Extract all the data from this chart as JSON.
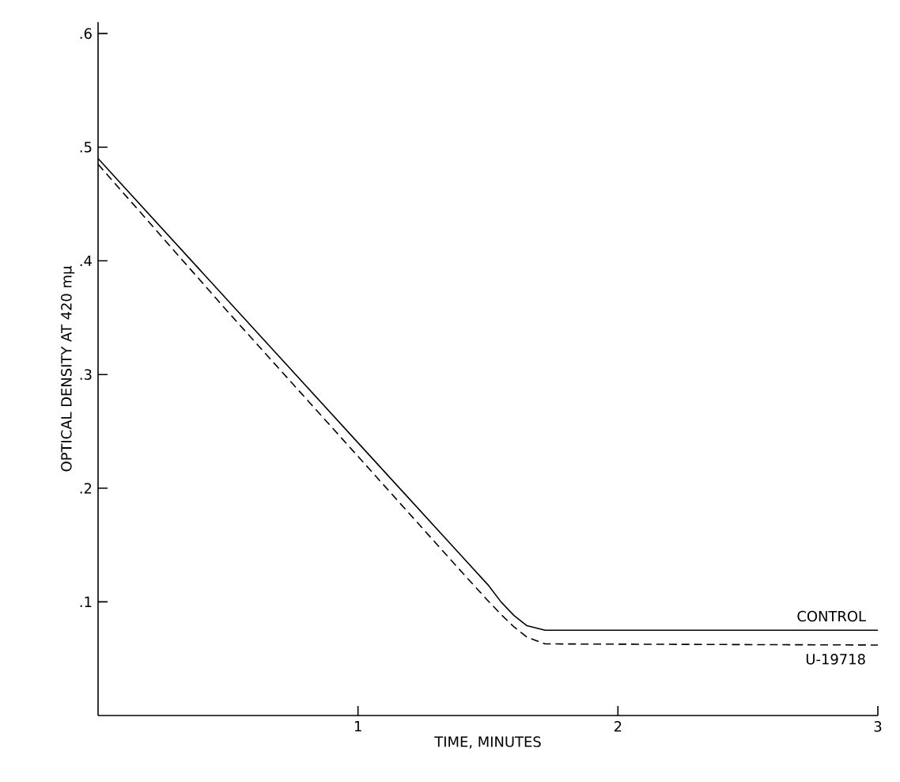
{
  "chart_data": {
    "type": "line",
    "xlabel": "TIME, MINUTES",
    "ylabel": "OPTICAL DENSITY AT 420 mμ",
    "xlim": [
      0,
      3
    ],
    "ylim": [
      0,
      0.61
    ],
    "xticks": [
      1,
      2,
      3
    ],
    "yticks": [
      {
        "value": 0.1,
        "label": ".1"
      },
      {
        "value": 0.2,
        "label": ".2"
      },
      {
        "value": 0.3,
        "label": ".3"
      },
      {
        "value": 0.4,
        "label": ".4"
      },
      {
        "value": 0.5,
        "label": ".5"
      },
      {
        "value": 0.6,
        "label": ".6"
      }
    ],
    "grid": false,
    "legend": false,
    "series": [
      {
        "name": "CONTROL",
        "color": "#000000",
        "line_style": "solid",
        "x": [
          0,
          0.5,
          1,
          1.4,
          1.5,
          1.55,
          1.6,
          1.65,
          1.72,
          3
        ],
        "values": [
          0.49,
          0.365,
          0.24,
          0.14,
          0.115,
          0.1,
          0.088,
          0.079,
          0.075,
          0.075
        ]
      },
      {
        "name": "U-19718",
        "color": "#000000",
        "line_style": "dashed",
        "x": [
          0,
          0.5,
          1,
          1.4,
          1.5,
          1.55,
          1.6,
          1.65,
          1.72,
          3
        ],
        "values": [
          0.485,
          0.355,
          0.228,
          0.126,
          0.101,
          0.089,
          0.078,
          0.069,
          0.063,
          0.062
        ]
      }
    ]
  }
}
